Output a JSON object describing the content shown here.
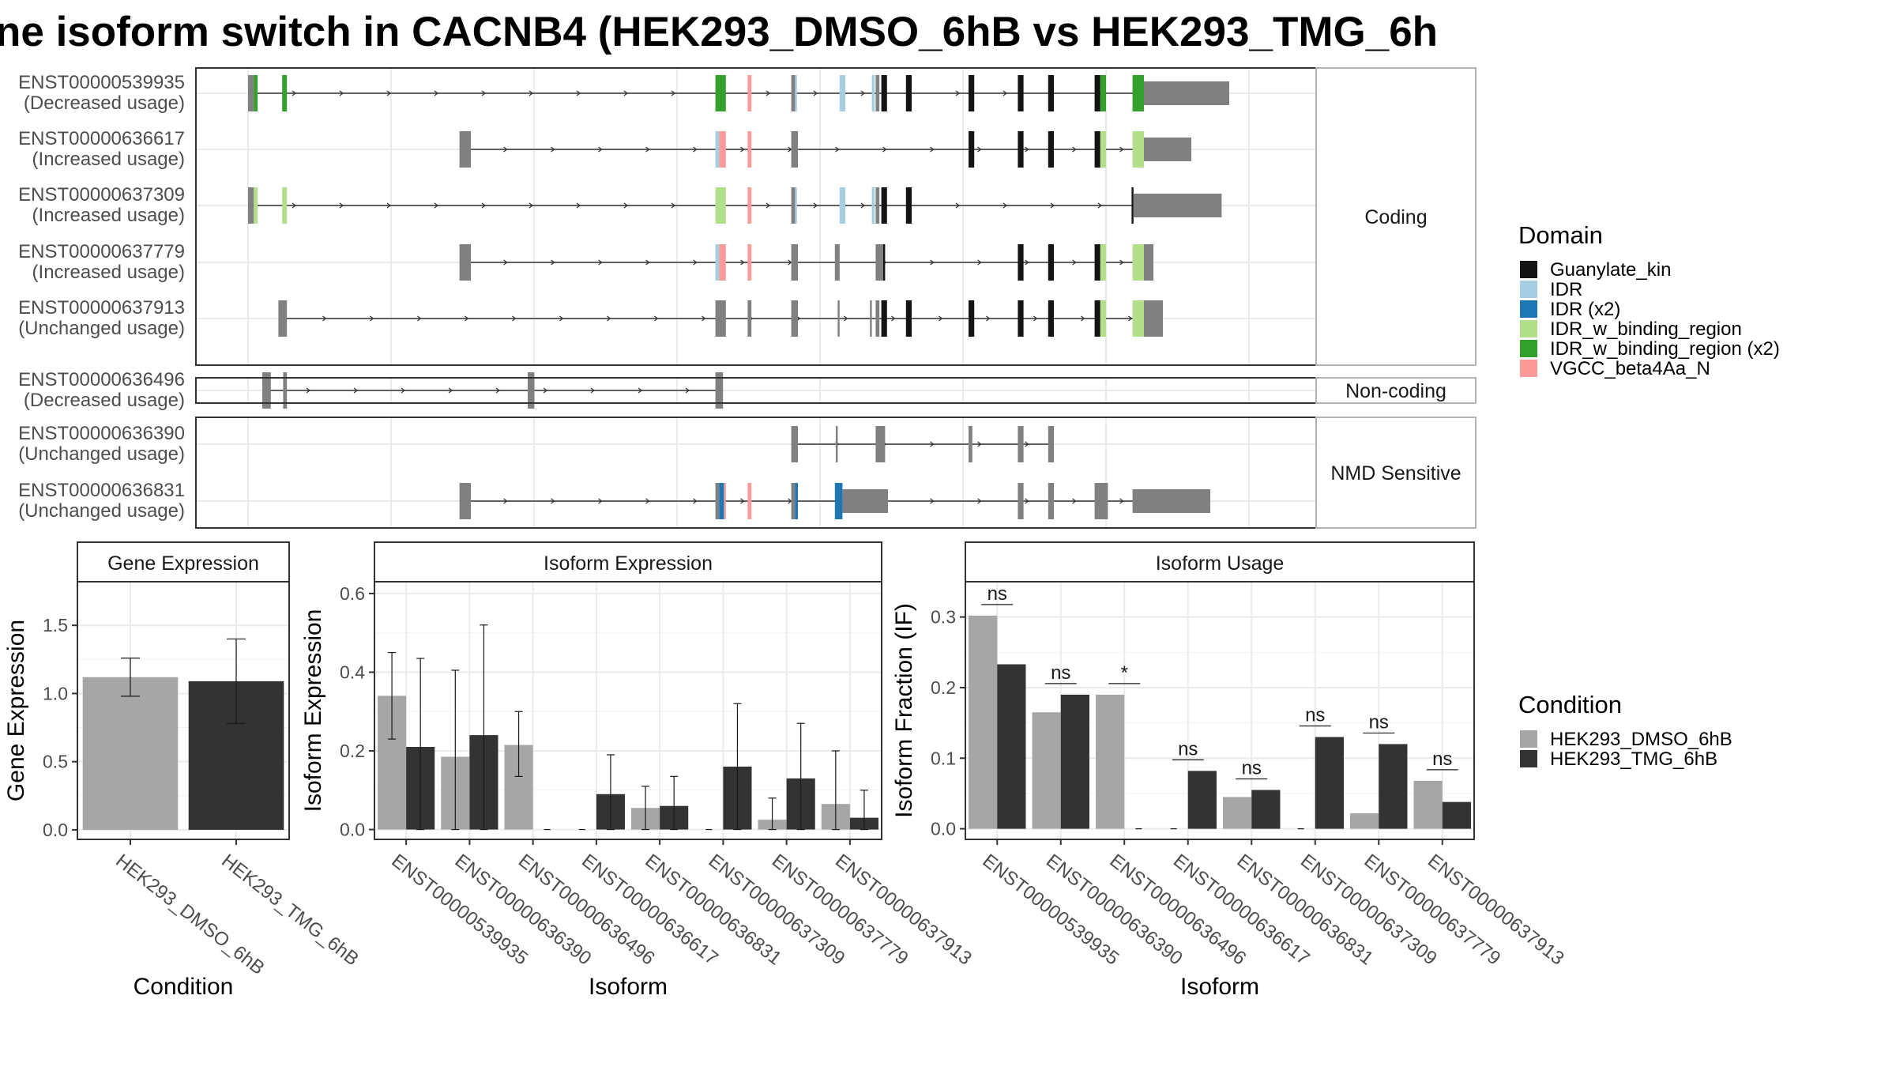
{
  "title": "ne isoform switch in CACNB4 (HEK293_DMSO_6hB vs HEK293_TMG_6h",
  "colors": {
    "domain": {
      "Guanylate_kin": "#141414",
      "IDR": "#a6cee3",
      "IDR (x2)": "#1f78b4",
      "IDR_w_binding_region": "#b2df8a",
      "IDR_w_binding_region (x2)": "#33a02c",
      "VGCC_beta4Aa_N": "#fb9a99"
    },
    "exon": "#808080",
    "dmso": "#a6a6a6",
    "tmg": "#333333",
    "panel_border": "#333333",
    "strip_fill": "#ffffff",
    "grid": "#ebebeb"
  },
  "gene_model": {
    "groups": [
      {
        "label": "Coding",
        "transcripts": [
          {
            "id": "ENST00000539935",
            "usage": "(Decreased usage)",
            "exons": [
              [
                0,
                6,
                "exon"
              ],
              [
                6,
                10,
                "IDR_w_binding_region (x2)"
              ],
              [
                36,
                41,
                "IDR_w_binding_region (x2)"
              ],
              [
                493,
                504,
                "IDR_w_binding_region (x2)"
              ],
              [
                527,
                531,
                "VGCC_beta4Aa_N"
              ],
              [
                573,
                577,
                "exon"
              ],
              [
                577,
                579,
                "IDR"
              ],
              [
                624,
                630,
                "IDR"
              ],
              [
                658,
                661,
                "IDR"
              ],
              [
                662,
                666,
                "exon"
              ],
              [
                668,
                674,
                "Guanylate_kin"
              ],
              [
                694,
                700,
                "Guanylate_kin"
              ],
              [
                760,
                766,
                "Guanylate_kin"
              ],
              [
                812,
                818,
                "Guanylate_kin"
              ],
              [
                844,
                850,
                "Guanylate_kin"
              ],
              [
                893,
                899,
                "Guanylate_kin"
              ],
              [
                899,
                905,
                "IDR_w_binding_region (x2)"
              ],
              [
                933,
                945,
                "IDR_w_binding_region (x2)"
              ],
              [
                945,
                1035,
                "exon"
              ]
            ]
          },
          {
            "id": "ENST00000636617",
            "usage": "(Increased usage)",
            "exons": [
              [
                223,
                235,
                "exon"
              ],
              [
                493,
                497,
                "IDR"
              ],
              [
                497,
                504,
                "VGCC_beta4Aa_N"
              ],
              [
                527,
                531,
                "VGCC_beta4Aa_N"
              ],
              [
                573,
                580,
                "exon"
              ],
              [
                760,
                766,
                "Guanylate_kin"
              ],
              [
                812,
                818,
                "Guanylate_kin"
              ],
              [
                844,
                850,
                "Guanylate_kin"
              ],
              [
                893,
                899,
                "Guanylate_kin"
              ],
              [
                899,
                905,
                "IDR_w_binding_region"
              ],
              [
                933,
                945,
                "IDR_w_binding_region"
              ],
              [
                945,
                995,
                "exon"
              ]
            ]
          },
          {
            "id": "ENST00000637309",
            "usage": "(Increased usage)",
            "exons": [
              [
                0,
                6,
                "exon"
              ],
              [
                6,
                10,
                "IDR_w_binding_region"
              ],
              [
                36,
                41,
                "IDR_w_binding_region"
              ],
              [
                493,
                504,
                "IDR_w_binding_region"
              ],
              [
                527,
                531,
                "VGCC_beta4Aa_N"
              ],
              [
                573,
                577,
                "exon"
              ],
              [
                577,
                579,
                "IDR"
              ],
              [
                624,
                630,
                "IDR"
              ],
              [
                658,
                661,
                "IDR"
              ],
              [
                662,
                666,
                "exon"
              ],
              [
                668,
                674,
                "Guanylate_kin"
              ],
              [
                694,
                700,
                "Guanylate_kin"
              ],
              [
                932,
                934,
                "Guanylate_kin"
              ],
              [
                934,
                1027,
                "exon"
              ]
            ]
          },
          {
            "id": "ENST00000637779",
            "usage": "(Increased usage)",
            "exons": [
              [
                223,
                235,
                "exon"
              ],
              [
                493,
                497,
                "IDR"
              ],
              [
                497,
                504,
                "VGCC_beta4Aa_N"
              ],
              [
                527,
                531,
                "VGCC_beta4Aa_N"
              ],
              [
                573,
                580,
                "exon"
              ],
              [
                619,
                624,
                "exon"
              ],
              [
                662,
                670,
                "exon"
              ],
              [
                670,
                672,
                "Guanylate_kin"
              ],
              [
                812,
                818,
                "Guanylate_kin"
              ],
              [
                844,
                850,
                "Guanylate_kin"
              ],
              [
                893,
                899,
                "Guanylate_kin"
              ],
              [
                899,
                905,
                "IDR_w_binding_region"
              ],
              [
                933,
                945,
                "IDR_w_binding_region"
              ],
              [
                945,
                955,
                "exon"
              ]
            ]
          },
          {
            "id": "ENST00000637913",
            "usage": "(Unchanged usage)",
            "exons": [
              [
                32,
                41,
                "exon"
              ],
              [
                493,
                504,
                "exon"
              ],
              [
                527,
                531,
                "exon"
              ],
              [
                573,
                580,
                "exon"
              ],
              [
                622,
                624,
                "exon"
              ],
              [
                656,
                658,
                "exon"
              ],
              [
                662,
                666,
                "exon"
              ],
              [
                668,
                674,
                "Guanylate_kin"
              ],
              [
                694,
                700,
                "Guanylate_kin"
              ],
              [
                760,
                766,
                "Guanylate_kin"
              ],
              [
                812,
                818,
                "Guanylate_kin"
              ],
              [
                844,
                850,
                "Guanylate_kin"
              ],
              [
                893,
                899,
                "Guanylate_kin"
              ],
              [
                899,
                905,
                "IDR_w_binding_region"
              ],
              [
                933,
                945,
                "IDR_w_binding_region"
              ],
              [
                945,
                965,
                "exon"
              ]
            ]
          }
        ]
      },
      {
        "label": "Non-coding",
        "transcripts": [
          {
            "id": "ENST00000636496",
            "usage": "(Decreased usage)",
            "exons": [
              [
                15,
                24,
                "exon"
              ],
              [
                37,
                41,
                "exon"
              ],
              [
                295,
                302,
                "exon"
              ],
              [
                493,
                501,
                "exon"
              ]
            ]
          }
        ]
      },
      {
        "label": "NMD Sensitive",
        "transcripts": [
          {
            "id": "ENST00000636390",
            "usage": "(Unchanged usage)",
            "exons": [
              [
                573,
                580,
                "exon"
              ],
              [
                620,
                622,
                "exon"
              ],
              [
                662,
                672,
                "exon"
              ],
              [
                760,
                764,
                "exon"
              ],
              [
                762,
                763,
                "exon"
              ],
              [
                812,
                818,
                "exon"
              ],
              [
                844,
                850,
                "exon"
              ]
            ]
          },
          {
            "id": "ENST00000636831",
            "usage": "(Unchanged usage)",
            "exons": [
              [
                223,
                235,
                "exon"
              ],
              [
                493,
                497,
                "exon"
              ],
              [
                497,
                502,
                "IDR (x2)"
              ],
              [
                502,
                504,
                "VGCC_beta4Aa_N"
              ],
              [
                527,
                531,
                "VGCC_beta4Aa_N"
              ],
              [
                573,
                577,
                "exon"
              ],
              [
                577,
                580,
                "IDR (x2)"
              ],
              [
                619,
                627,
                "IDR (x2)"
              ],
              [
                627,
                675,
                "exon"
              ],
              [
                812,
                818,
                "exon"
              ],
              [
                844,
                850,
                "exon"
              ],
              [
                893,
                907,
                "exon"
              ],
              [
                933,
                1015,
                "exon"
              ]
            ]
          }
        ]
      }
    ]
  },
  "domain_legend": {
    "title": "Domain",
    "items": [
      "Guanylate_kin",
      "IDR",
      "IDR (x2)",
      "IDR_w_binding_region",
      "IDR_w_binding_region (x2)",
      "VGCC_beta4Aa_N"
    ]
  },
  "condition_legend": {
    "title": "Condition",
    "items": [
      "HEK293_DMSO_6hB",
      "HEK293_TMG_6hB"
    ]
  },
  "chart_data": [
    {
      "type": "bar",
      "title": "Gene Expression",
      "xlabel": "Condition",
      "ylabel": "Gene Expression",
      "categories": [
        "HEK293_DMSO_6hB",
        "HEK293_TMG_6hB"
      ],
      "values": [
        1.12,
        1.09
      ],
      "error_low": [
        0.98,
        0.78
      ],
      "error_high": [
        1.26,
        1.4
      ],
      "ylim": [
        -0.07,
        1.82
      ],
      "yticks": [
        0.0,
        0.5,
        1.0,
        1.5
      ],
      "yticklabels": [
        "0.0",
        "0.5",
        "1.0",
        "1.5"
      ]
    },
    {
      "type": "bar",
      "title": "Isoform Expression",
      "xlabel": "Isoform",
      "ylabel": "Isoform Expression",
      "categories": [
        "ENST00000539935",
        "ENST00000636390",
        "ENST00000636496",
        "ENST00000636617",
        "ENST00000636831",
        "ENST00000637309",
        "ENST00000637779",
        "ENST00000637913"
      ],
      "series": [
        {
          "name": "HEK293_DMSO_6hB",
          "values": [
            0.34,
            0.185,
            0.215,
            0.0,
            0.055,
            0.0,
            0.025,
            0.065
          ],
          "error_low": [
            0.23,
            0.0,
            0.135,
            0.0,
            0.0,
            0.0,
            0.0,
            0.0
          ],
          "error_high": [
            0.45,
            0.405,
            0.3,
            0.0,
            0.11,
            0.0,
            0.08,
            0.2
          ]
        },
        {
          "name": "HEK293_TMG_6hB",
          "values": [
            0.21,
            0.24,
            0.0,
            0.09,
            0.06,
            0.16,
            0.13,
            0.03
          ],
          "error_low": [
            0.0,
            0.0,
            0.0,
            0.0,
            0.0,
            0.0,
            0.0,
            0.0
          ],
          "error_high": [
            0.435,
            0.52,
            0.0,
            0.19,
            0.135,
            0.32,
            0.27,
            0.1
          ]
        }
      ],
      "ylim": [
        -0.025,
        0.63
      ],
      "yticks": [
        0.0,
        0.2,
        0.4,
        0.6
      ],
      "yticklabels": [
        "0.0",
        "0.2",
        "0.4",
        "0.6"
      ]
    },
    {
      "type": "bar",
      "title": "Isoform Usage",
      "xlabel": "Isoform",
      "ylabel": "Isoform Fraction (IF)",
      "categories": [
        "ENST00000539935",
        "ENST00000636390",
        "ENST00000636496",
        "ENST00000636617",
        "ENST00000636831",
        "ENST00000637309",
        "ENST00000637779",
        "ENST00000637913"
      ],
      "series": [
        {
          "name": "HEK293_DMSO_6hB",
          "values": [
            0.302,
            0.165,
            0.19,
            0.0,
            0.045,
            0.0,
            0.022,
            0.068
          ]
        },
        {
          "name": "HEK293_TMG_6hB",
          "values": [
            0.233,
            0.19,
            0.0,
            0.082,
            0.055,
            0.13,
            0.12,
            0.038
          ]
        }
      ],
      "significance": [
        "ns",
        "ns",
        "*",
        "ns",
        "ns",
        "ns",
        "ns",
        "ns"
      ],
      "ylim": [
        -0.015,
        0.35
      ],
      "yticks": [
        0.0,
        0.1,
        0.2,
        0.3
      ],
      "yticklabels": [
        "0.0",
        "0.1",
        "0.2",
        "0.3"
      ]
    }
  ]
}
